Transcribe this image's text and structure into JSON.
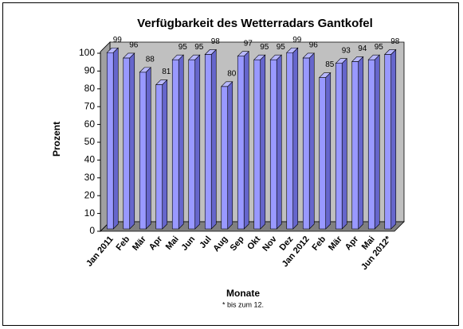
{
  "chart_data": {
    "type": "bar3d",
    "title": "Verfügbarkeit des Wetterradars Gantkofel",
    "y_label": "Prozent",
    "x_label": "Monate",
    "note": "* bis zum 12.",
    "categories": [
      "Jan 2011",
      "Feb",
      "Mär",
      "Apr",
      "Mai",
      "Jun",
      "Jul",
      "Aug",
      "Sep",
      "Okt",
      "Nov",
      "Dez",
      "Jan 2012",
      "Feb",
      "Mär",
      "Apr",
      "Mai",
      "Jun 2012*"
    ],
    "values": [
      99,
      96,
      88,
      81,
      95,
      95,
      98,
      80,
      97,
      95,
      95,
      99,
      96,
      85,
      93,
      94,
      95,
      98
    ],
    "color": "#9999ff",
    "ylim": [
      0,
      100
    ],
    "yticks": [
      0,
      10,
      20,
      30,
      40,
      50,
      60,
      70,
      80,
      90,
      100
    ]
  }
}
